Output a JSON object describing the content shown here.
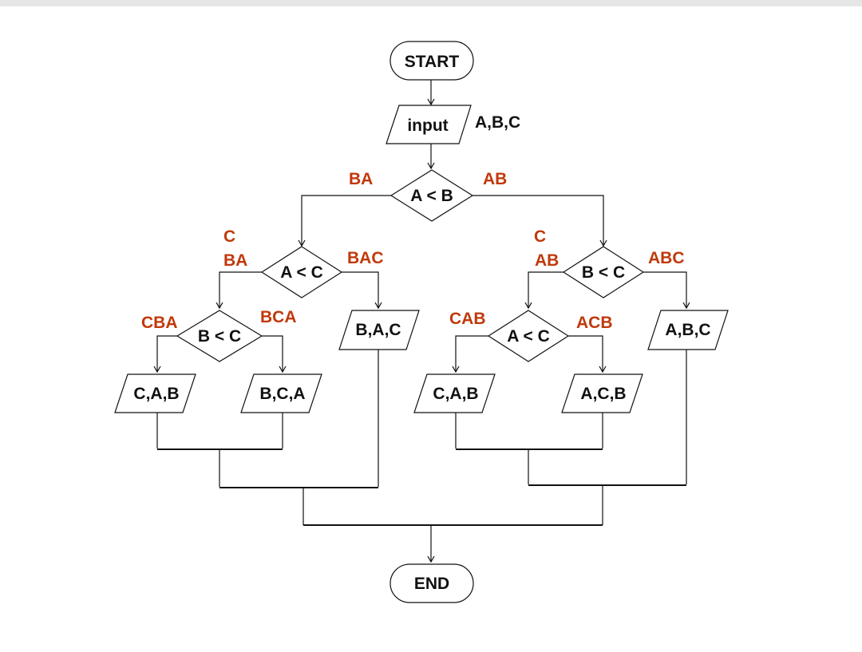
{
  "colors": {
    "line": "#111111",
    "branch_label": "#c0390b",
    "background": "#ffffff",
    "top_bar": "#e6e6e6"
  },
  "nodes": {
    "start": "START",
    "input": "input",
    "input_vars": "A,B,C",
    "d1": "A < B",
    "d2": "A < C",
    "d3": "B < C",
    "d4": "B < C",
    "d5": "A < C",
    "o_cab_left": "C,A,B",
    "o_bca": "B,C,A",
    "o_bac": "B,A,C",
    "o_cab_right": "C,A,B",
    "o_acb": "A,C,B",
    "o_abc": "A,B,C",
    "end": "END"
  },
  "branch_labels": {
    "d1_left": "BA",
    "d1_right": "AB",
    "d2_left_c": "C",
    "d2_left_ba": "BA",
    "d2_right": "BAC",
    "d4_left": "CBA",
    "d4_right": "BCA",
    "d3_left_c": "C",
    "d3_left_ab": "AB",
    "d3_right": "ABC",
    "d5_left": "CAB",
    "d5_right": "ACB"
  }
}
